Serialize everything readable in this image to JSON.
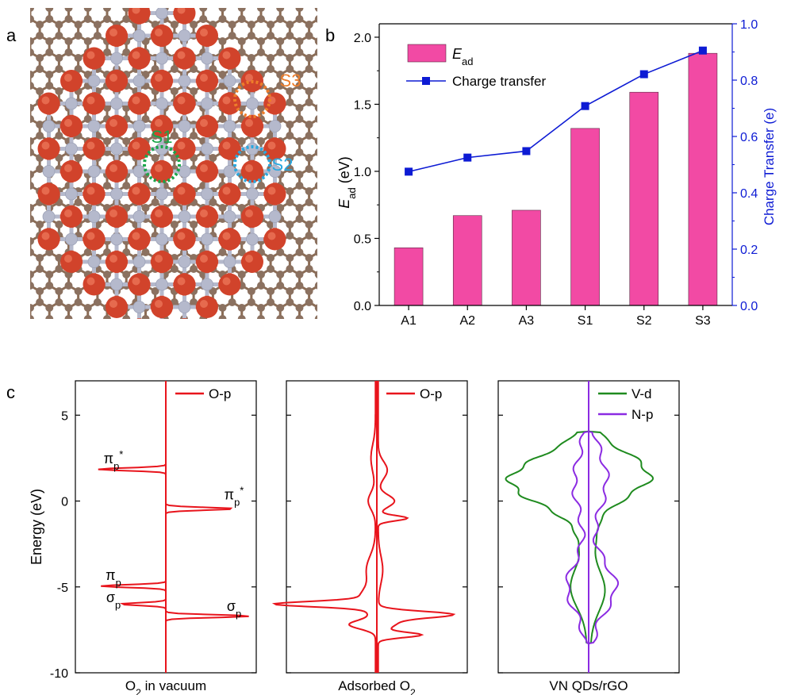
{
  "panel_labels": {
    "a": "a",
    "b": "b",
    "c": "c"
  },
  "structure": {
    "site_labels": {
      "s1": "S1",
      "s2": "S2",
      "s3": "S3"
    },
    "colors": {
      "bond": "#8b6c55",
      "carbon": "#8b7160",
      "vanadium": "#d1432b",
      "nitrogen": "#b5b9cc",
      "s1": "#1aa54a",
      "s2": "#29a8e0",
      "s3": "#ee7d2a"
    }
  },
  "chart_data": [
    {
      "id": "b",
      "type": "bar",
      "categories": [
        "A1",
        "A2",
        "A3",
        "S1",
        "S2",
        "S3"
      ],
      "ylabel_main": "E",
      "ylabel_sub": "ad",
      "ylabel_unit": "(eV)",
      "ylabel_right": "Charge Transfer (e)",
      "ylim": [
        0,
        2.1
      ],
      "ylim_right": [
        0,
        1.0
      ],
      "yticks": [
        "0.0",
        "0.5",
        "1.0",
        "1.5",
        "2.0"
      ],
      "yticks_right": [
        "0.0",
        "0.2",
        "0.4",
        "0.6",
        "0.8",
        "1.0"
      ],
      "series": [
        {
          "name_main": "E",
          "name_sub": "ad",
          "kind": "bar",
          "color": "#f24aa4",
          "values": [
            0.43,
            0.67,
            0.71,
            1.32,
            1.59,
            1.88
          ]
        },
        {
          "name": "Charge transfer",
          "kind": "line",
          "color": "#0d1bd4",
          "values": [
            0.475,
            0.525,
            0.548,
            0.708,
            0.821,
            0.905
          ]
        }
      ]
    },
    {
      "id": "c",
      "type": "line",
      "ylabel": "Energy (eV)",
      "ylim": [
        -10,
        7
      ],
      "yticks": [
        "-10",
        "-5",
        "0",
        "5"
      ],
      "subplots": [
        {
          "xlabel_pre": "O",
          "xlabel_sub": "2",
          "xlabel_post": " in vacuum",
          "legend": [
            "O-p"
          ],
          "series": [
            {
              "name": "O-p",
              "color": "#e8141c",
              "left_peaks": [
                {
                  "e": 1.85,
                  "h": 0.75
                },
                {
                  "e": -4.95,
                  "h": 0.72
                },
                {
                  "e": -6.0,
                  "h": 0.5
                }
              ],
              "right_peaks": [
                {
                  "e": -0.45,
                  "h": 0.76
                },
                {
                  "e": -6.7,
                  "h": 0.93
                }
              ]
            }
          ],
          "peak_labels": [
            {
              "base": "π",
              "sub": "p",
              "sup": "*",
              "e": 2.2,
              "side": "left"
            },
            {
              "base": "π",
              "sub": "p",
              "sup": "*",
              "e": 0.1,
              "side": "right"
            },
            {
              "base": "π",
              "sub": "p",
              "sup": "",
              "e": -4.6,
              "side": "left"
            },
            {
              "base": "σ",
              "sub": "p",
              "sup": "",
              "e": -5.9,
              "side": "left"
            },
            {
              "base": "σ",
              "sub": "p",
              "sup": "",
              "e": -6.4,
              "side": "right"
            }
          ]
        },
        {
          "xlabel_pre": "Adsorbed O",
          "xlabel_sub": "2",
          "xlabel_post": "",
          "legend": [
            "O-p"
          ],
          "series": [
            {
              "name": "O-p",
              "color": "#e8141c"
            }
          ]
        },
        {
          "xlabel_pre": "VN QDs/rGO",
          "xlabel_sub": "",
          "xlabel_post": "",
          "legend": [
            "V-d",
            "N-p"
          ],
          "series": [
            {
              "name": "V-d",
              "color": "#1f8b1f"
            },
            {
              "name": "N-p",
              "color": "#8b2be2"
            }
          ]
        }
      ]
    }
  ]
}
